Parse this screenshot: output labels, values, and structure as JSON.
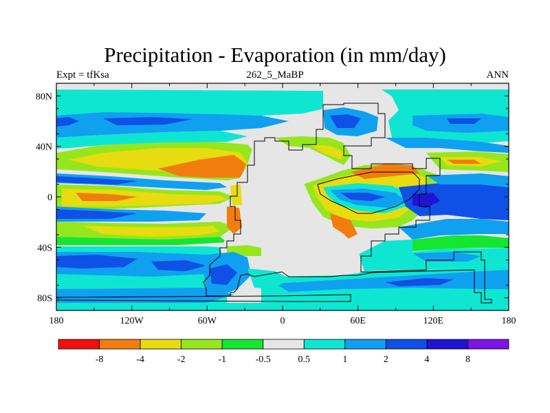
{
  "title": "Precipitation - Evaporation (in mm/day)",
  "subtitle_left": "Expt = tfKsa",
  "subtitle_center": "262_5_MaBP",
  "subtitle_right": "ANN",
  "chart_data": {
    "type": "heatmap",
    "projection": "cylindrical-equidistant",
    "x_range": [
      -180,
      180
    ],
    "y_range": [
      -90,
      90
    ],
    "x_ticks": [
      {
        "value": -180,
        "label": "180"
      },
      {
        "value": -120,
        "label": "120W"
      },
      {
        "value": -60,
        "label": "60W"
      },
      {
        "value": 0,
        "label": "0"
      },
      {
        "value": 60,
        "label": "60E"
      },
      {
        "value": 120,
        "label": "120E"
      },
      {
        "value": 180,
        "label": "180"
      }
    ],
    "y_ticks": [
      {
        "value": 80,
        "label": "80N"
      },
      {
        "value": 40,
        "label": "40N"
      },
      {
        "value": 0,
        "label": "0"
      },
      {
        "value": -40,
        "label": "40S"
      },
      {
        "value": -80,
        "label": "80S"
      }
    ],
    "colorbar": {
      "colors": [
        "#f20f0f",
        "#f27d0f",
        "#e6dc0f",
        "#96e61e",
        "#14e632",
        "#e6e6e6",
        "#0fe6d2",
        "#0fa0f0",
        "#0f50e6",
        "#1e14d2",
        "#7d14e6"
      ],
      "levels": [
        "-8",
        "-4",
        "-2",
        "-1",
        "-0.5",
        "0.5",
        "1",
        "2",
        "4",
        "8"
      ]
    }
  }
}
